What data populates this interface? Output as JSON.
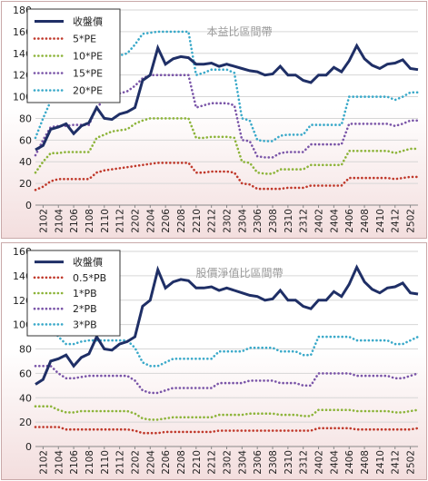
{
  "chart_data": [
    {
      "type": "line",
      "title": "本益比區間帶",
      "ylim": [
        0,
        180
      ],
      "yticks": [
        0,
        20,
        40,
        60,
        80,
        100,
        120,
        140,
        160,
        180
      ],
      "x": [
        "2101",
        "2102",
        "2103",
        "2104",
        "2105",
        "2106",
        "2107",
        "2108",
        "2109",
        "2110",
        "2111",
        "2112",
        "2201",
        "2202",
        "2203",
        "2204",
        "2205",
        "2206",
        "2207",
        "2208",
        "2209",
        "2210",
        "2211",
        "2212",
        "2301",
        "2302",
        "2303",
        "2304",
        "2305",
        "2306",
        "2307",
        "2308",
        "2309",
        "2310",
        "2311",
        "2312",
        "2401",
        "2402",
        "2403",
        "2404",
        "2405",
        "2406",
        "2407",
        "2408",
        "2409",
        "2410",
        "2411",
        "2412",
        "2501",
        "2502",
        "2503"
      ],
      "xtick_labels": [
        "2102",
        "2104",
        "2106",
        "2108",
        "2110",
        "2112",
        "2202",
        "2204",
        "2206",
        "2208",
        "2210",
        "2212",
        "2302",
        "2304",
        "2306",
        "2308",
        "2310",
        "2312",
        "2402",
        "2404",
        "2406",
        "2408",
        "2410",
        "2412",
        "2502"
      ],
      "grid": true,
      "legend_position": "top-left",
      "series": [
        {
          "name": "收盤價",
          "color": "#1f2f66",
          "style": "solid",
          "values": [
            51,
            55,
            70,
            72,
            75,
            66,
            73,
            76,
            90,
            80,
            79,
            84,
            86,
            90,
            115,
            120,
            145,
            130,
            135,
            137,
            136,
            130,
            130,
            131,
            128,
            130,
            128,
            126,
            124,
            123,
            120,
            121,
            128,
            120,
            120,
            115,
            113,
            120,
            120,
            127,
            123,
            133,
            147,
            135,
            129,
            126,
            130,
            131,
            134,
            126,
            125
          ]
        },
        {
          "name": "5*PE",
          "color": "#c0392b",
          "style": "dotted",
          "values": [
            14,
            17,
            22,
            24,
            24,
            24,
            24,
            24,
            30,
            32,
            33,
            34,
            35,
            36,
            37,
            38,
            39,
            39,
            39,
            39,
            39,
            30,
            30,
            31,
            31,
            31,
            30,
            20,
            19,
            15,
            15,
            15,
            15,
            16,
            16,
            16,
            18,
            18,
            18,
            18,
            18,
            25,
            25,
            25,
            25,
            25,
            25,
            24,
            25,
            26,
            26
          ]
        },
        {
          "name": "10*PE",
          "color": "#8db43a",
          "style": "dotted",
          "values": [
            30,
            40,
            48,
            48,
            49,
            49,
            49,
            49,
            62,
            65,
            68,
            69,
            70,
            75,
            78,
            80,
            80,
            80,
            80,
            80,
            80,
            62,
            62,
            63,
            63,
            63,
            62,
            40,
            39,
            30,
            29,
            29,
            33,
            33,
            33,
            33,
            37,
            37,
            37,
            37,
            37,
            50,
            50,
            50,
            50,
            50,
            50,
            48,
            50,
            52,
            52
          ]
        },
        {
          "name": "15*PE",
          "color": "#7a55a8",
          "style": "dotted",
          "values": [
            46,
            60,
            72,
            73,
            73,
            74,
            74,
            74,
            90,
            97,
            100,
            103,
            105,
            110,
            117,
            120,
            120,
            120,
            120,
            120,
            120,
            90,
            92,
            94,
            94,
            94,
            92,
            60,
            59,
            45,
            44,
            44,
            48,
            49,
            49,
            49,
            56,
            56,
            56,
            56,
            56,
            75,
            75,
            75,
            75,
            75,
            75,
            73,
            75,
            78,
            78
          ]
        },
        {
          "name": "20*PE",
          "color": "#3aa9c9",
          "style": "dotted",
          "values": [
            62,
            80,
            96,
            97,
            98,
            98,
            98,
            98,
            120,
            130,
            134,
            138,
            140,
            148,
            158,
            159,
            160,
            160,
            160,
            160,
            160,
            120,
            122,
            125,
            125,
            125,
            122,
            80,
            78,
            60,
            59,
            59,
            64,
            65,
            65,
            65,
            74,
            74,
            74,
            74,
            74,
            100,
            100,
            100,
            100,
            100,
            100,
            97,
            100,
            104,
            104
          ]
        }
      ]
    },
    {
      "type": "line",
      "title": "股價淨值比區間帶",
      "ylim": [
        0,
        160
      ],
      "yticks": [
        0,
        20,
        40,
        60,
        80,
        100,
        120,
        140,
        160
      ],
      "x": [
        "2101",
        "2102",
        "2103",
        "2104",
        "2105",
        "2106",
        "2107",
        "2108",
        "2109",
        "2110",
        "2111",
        "2112",
        "2201",
        "2202",
        "2203",
        "2204",
        "2205",
        "2206",
        "2207",
        "2208",
        "2209",
        "2210",
        "2211",
        "2212",
        "2301",
        "2302",
        "2303",
        "2304",
        "2305",
        "2306",
        "2307",
        "2308",
        "2309",
        "2310",
        "2311",
        "2312",
        "2401",
        "2402",
        "2403",
        "2404",
        "2405",
        "2406",
        "2407",
        "2408",
        "2409",
        "2410",
        "2411",
        "2412",
        "2501",
        "2502",
        "2503"
      ],
      "xtick_labels": [
        "2102",
        "2104",
        "2106",
        "2108",
        "2110",
        "2112",
        "2202",
        "2204",
        "2206",
        "2208",
        "2210",
        "2212",
        "2302",
        "2304",
        "2306",
        "2308",
        "2310",
        "2312",
        "2402",
        "2404",
        "2406",
        "2408",
        "2410",
        "2412",
        "2502"
      ],
      "grid": true,
      "legend_position": "top-left",
      "series": [
        {
          "name": "收盤價",
          "color": "#1f2f66",
          "style": "solid",
          "values": [
            51,
            55,
            70,
            72,
            75,
            66,
            73,
            76,
            90,
            80,
            79,
            84,
            86,
            90,
            115,
            120,
            145,
            130,
            135,
            137,
            136,
            130,
            130,
            131,
            128,
            130,
            128,
            126,
            124,
            123,
            120,
            121,
            128,
            120,
            120,
            115,
            113,
            120,
            120,
            127,
            123,
            133,
            147,
            135,
            129,
            126,
            130,
            131,
            134,
            126,
            125
          ]
        },
        {
          "name": "0.5*PB",
          "color": "#c0392b",
          "style": "dotted",
          "values": [
            16,
            16,
            16,
            16,
            14,
            14,
            14,
            14,
            14,
            14,
            14,
            14,
            14,
            13,
            11,
            11,
            11,
            12,
            12,
            12,
            12,
            12,
            12,
            12,
            13,
            13,
            13,
            13,
            13,
            13,
            13,
            13,
            13,
            13,
            13,
            13,
            13,
            15,
            15,
            15,
            15,
            15,
            14,
            14,
            14,
            14,
            14,
            14,
            14,
            14,
            15
          ]
        },
        {
          "name": "1*PB",
          "color": "#8db43a",
          "style": "dotted",
          "values": [
            33,
            33,
            33,
            30,
            28,
            28,
            29,
            29,
            29,
            29,
            29,
            29,
            29,
            27,
            23,
            22,
            22,
            23,
            24,
            24,
            24,
            24,
            24,
            24,
            26,
            26,
            26,
            26,
            27,
            27,
            27,
            27,
            26,
            26,
            26,
            25,
            25,
            30,
            30,
            30,
            30,
            30,
            29,
            29,
            29,
            29,
            29,
            28,
            28,
            29,
            30
          ]
        },
        {
          "name": "2*PB",
          "color": "#7a55a8",
          "style": "dotted",
          "values": [
            66,
            66,
            66,
            60,
            56,
            56,
            57,
            58,
            58,
            58,
            58,
            58,
            58,
            54,
            46,
            44,
            44,
            46,
            48,
            48,
            48,
            48,
            48,
            48,
            52,
            52,
            52,
            52,
            54,
            54,
            54,
            54,
            52,
            52,
            52,
            50,
            50,
            60,
            60,
            60,
            60,
            60,
            58,
            58,
            58,
            58,
            58,
            56,
            56,
            58,
            60
          ]
        },
        {
          "name": "3*PB",
          "color": "#3aa9c9",
          "style": "dotted",
          "values": [
            99,
            99,
            99,
            90,
            84,
            84,
            86,
            87,
            87,
            87,
            87,
            87,
            87,
            81,
            69,
            66,
            66,
            69,
            72,
            72,
            72,
            72,
            72,
            72,
            78,
            78,
            78,
            78,
            81,
            81,
            81,
            81,
            78,
            78,
            78,
            75,
            75,
            90,
            90,
            90,
            90,
            90,
            87,
            87,
            87,
            87,
            87,
            84,
            84,
            87,
            90
          ]
        }
      ]
    }
  ]
}
